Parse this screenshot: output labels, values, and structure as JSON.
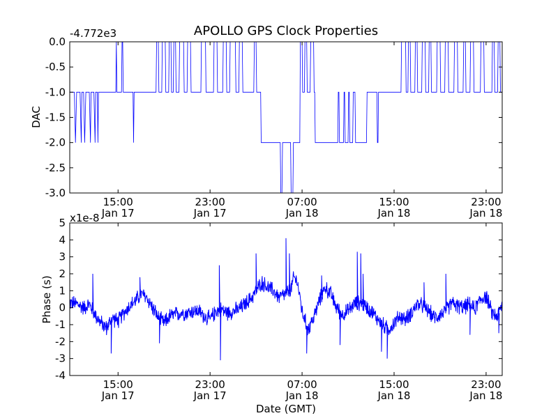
{
  "figure": {
    "title": "APOLLO GPS Clock Properties",
    "xlabel": "Date (GMT)"
  },
  "colors": {
    "line": "#0000ff",
    "axes": "#000000",
    "background": "#ffffff"
  },
  "chart_data": [
    {
      "type": "line",
      "name": "dac",
      "ylabel": "DAC",
      "offset_text": "-4.772e3",
      "ylim": [
        -3.0,
        0.0
      ],
      "xlim_hours": [
        10.8,
        48.4
      ],
      "y_tick_labels": [
        "0.0",
        "-0.5",
        "-1.0",
        "-1.5",
        "-2.0",
        "-2.5",
        "-3.0"
      ],
      "y_tick_values": [
        0.0,
        -0.5,
        -1.0,
        -1.5,
        -2.0,
        -2.5,
        -3.0
      ],
      "x_tick_hours": [
        15,
        23,
        31,
        39,
        47
      ],
      "x_tick_time": [
        "15:00",
        "23:00",
        "07:00",
        "15:00",
        "23:00"
      ],
      "x_tick_date": [
        "Jan 17",
        "Jan 17",
        "Jan 18",
        "Jan 18",
        "Jan 18"
      ],
      "segments": [
        [
          10.8,
          -1
        ],
        [
          11.2,
          -1
        ],
        [
          11.3,
          -2
        ],
        [
          11.4,
          -1
        ],
        [
          11.7,
          -1
        ],
        [
          11.8,
          -2
        ],
        [
          11.85,
          -1
        ],
        [
          12.0,
          -1
        ],
        [
          12.1,
          -2
        ],
        [
          12.2,
          -1
        ],
        [
          12.5,
          -1
        ],
        [
          12.6,
          -2
        ],
        [
          12.65,
          -1
        ],
        [
          12.9,
          -1
        ],
        [
          13.0,
          -2
        ],
        [
          13.05,
          -1
        ],
        [
          13.2,
          -1
        ],
        [
          13.25,
          -2
        ],
        [
          13.3,
          -1
        ],
        [
          14.8,
          -1
        ],
        [
          14.85,
          0
        ],
        [
          14.9,
          -1
        ],
        [
          15.3,
          -1
        ],
        [
          15.35,
          0
        ],
        [
          15.4,
          0
        ],
        [
          15.45,
          -1
        ],
        [
          16.3,
          -1
        ],
        [
          16.35,
          -2
        ],
        [
          16.4,
          -1
        ],
        [
          18.3,
          -1
        ],
        [
          18.35,
          0
        ],
        [
          18.5,
          0
        ],
        [
          18.55,
          -1
        ],
        [
          18.8,
          -1
        ],
        [
          18.85,
          0
        ],
        [
          19.1,
          0
        ],
        [
          19.15,
          -1
        ],
        [
          19.4,
          -1
        ],
        [
          19.45,
          0
        ],
        [
          19.6,
          0
        ],
        [
          19.65,
          -1
        ],
        [
          19.8,
          -1
        ],
        [
          19.85,
          0
        ],
        [
          20.0,
          0
        ],
        [
          20.05,
          -1
        ],
        [
          20.3,
          -1
        ],
        [
          20.35,
          0
        ],
        [
          20.7,
          0
        ],
        [
          20.75,
          -1
        ],
        [
          21.0,
          -1
        ],
        [
          21.05,
          0
        ],
        [
          21.3,
          0
        ],
        [
          21.35,
          -1
        ],
        [
          22.2,
          -1
        ],
        [
          22.25,
          0
        ],
        [
          22.6,
          0
        ],
        [
          22.65,
          -1
        ],
        [
          23.3,
          -1
        ],
        [
          23.35,
          0
        ],
        [
          23.6,
          0
        ],
        [
          23.65,
          -1
        ],
        [
          24.1,
          -1
        ],
        [
          24.15,
          0
        ],
        [
          24.4,
          0
        ],
        [
          24.45,
          -1
        ],
        [
          24.7,
          -1
        ],
        [
          24.75,
          0
        ],
        [
          25.2,
          0
        ],
        [
          25.25,
          -1
        ],
        [
          25.5,
          -1
        ],
        [
          25.55,
          0
        ],
        [
          25.8,
          0
        ],
        [
          25.85,
          -1
        ],
        [
          26.8,
          -1
        ],
        [
          26.85,
          0
        ],
        [
          27.0,
          0
        ],
        [
          27.05,
          -1
        ],
        [
          27.4,
          -1
        ],
        [
          27.45,
          -2
        ],
        [
          29.1,
          -2
        ],
        [
          29.15,
          -3
        ],
        [
          29.25,
          -3
        ],
        [
          29.3,
          -2
        ],
        [
          30.0,
          -2
        ],
        [
          30.05,
          -3
        ],
        [
          30.2,
          -3
        ],
        [
          30.25,
          -2
        ],
        [
          30.8,
          -2
        ],
        [
          30.85,
          0
        ],
        [
          31.0,
          0
        ],
        [
          31.05,
          -1
        ],
        [
          31.2,
          -1
        ],
        [
          31.25,
          0
        ],
        [
          31.4,
          0
        ],
        [
          31.45,
          -1
        ],
        [
          31.7,
          -1
        ],
        [
          31.75,
          0
        ],
        [
          32.0,
          0
        ],
        [
          32.05,
          -1
        ],
        [
          32.1,
          -1
        ],
        [
          32.15,
          -2
        ],
        [
          34.1,
          -2
        ],
        [
          34.15,
          -1
        ],
        [
          34.2,
          -1
        ],
        [
          34.25,
          -2
        ],
        [
          34.6,
          -2
        ],
        [
          34.65,
          -1
        ],
        [
          34.7,
          -1
        ],
        [
          34.75,
          -2
        ],
        [
          35.0,
          -2
        ],
        [
          35.05,
          -1
        ],
        [
          35.1,
          -1
        ],
        [
          35.15,
          -2
        ],
        [
          35.4,
          -2
        ],
        [
          35.45,
          -1
        ],
        [
          35.6,
          -1
        ],
        [
          35.65,
          -2
        ],
        [
          36.6,
          -2
        ],
        [
          36.65,
          -1
        ],
        [
          37.5,
          -1
        ],
        [
          37.55,
          -2
        ],
        [
          37.6,
          -2
        ],
        [
          37.65,
          -1
        ],
        [
          39.6,
          -1
        ],
        [
          39.65,
          0
        ],
        [
          40.0,
          0
        ],
        [
          40.05,
          -1
        ],
        [
          40.2,
          -1
        ],
        [
          40.25,
          0
        ],
        [
          40.4,
          0
        ],
        [
          40.45,
          -1
        ],
        [
          40.8,
          -1
        ],
        [
          40.85,
          0
        ],
        [
          41.0,
          0
        ],
        [
          41.05,
          -1
        ],
        [
          41.4,
          -1
        ],
        [
          41.45,
          0
        ],
        [
          41.7,
          0
        ],
        [
          41.75,
          -1
        ],
        [
          42.0,
          -1
        ],
        [
          42.05,
          0
        ],
        [
          42.2,
          0
        ],
        [
          42.25,
          -1
        ],
        [
          42.7,
          -1
        ],
        [
          42.75,
          0
        ],
        [
          43.0,
          0
        ],
        [
          43.05,
          -1
        ],
        [
          43.4,
          -1
        ],
        [
          43.45,
          0
        ],
        [
          43.7,
          0
        ],
        [
          43.75,
          -1
        ],
        [
          44.2,
          -1
        ],
        [
          44.25,
          0
        ],
        [
          44.5,
          0
        ],
        [
          44.55,
          -1
        ],
        [
          45.0,
          -1
        ],
        [
          45.05,
          0
        ],
        [
          45.2,
          0
        ],
        [
          45.25,
          -1
        ],
        [
          45.6,
          -1
        ],
        [
          45.65,
          0
        ],
        [
          45.9,
          0
        ],
        [
          45.95,
          -1
        ],
        [
          46.5,
          -1
        ],
        [
          46.55,
          0
        ],
        [
          46.8,
          0
        ],
        [
          46.85,
          -1
        ],
        [
          47.5,
          -1
        ],
        [
          47.55,
          0
        ],
        [
          47.7,
          0
        ],
        [
          47.75,
          -1
        ],
        [
          48.0,
          -1
        ],
        [
          48.05,
          0
        ],
        [
          48.2,
          0
        ],
        [
          48.25,
          -1
        ],
        [
          48.4,
          -1
        ]
      ]
    },
    {
      "type": "line",
      "name": "phase",
      "ylabel": "Phase (s)",
      "offset_text": "x1e-8",
      "ylim": [
        -4,
        5
      ],
      "xlim_hours": [
        10.8,
        48.4
      ],
      "y_tick_labels": [
        "5",
        "4",
        "3",
        "2",
        "1",
        "0",
        "-1",
        "-2",
        "-3",
        "-4"
      ],
      "y_tick_values": [
        5,
        4,
        3,
        2,
        1,
        0,
        -1,
        -2,
        -3,
        -4
      ],
      "x_tick_hours": [
        15,
        23,
        31,
        39,
        47
      ],
      "x_tick_time": [
        "15:00",
        "23:00",
        "07:00",
        "15:00",
        "23:00"
      ],
      "x_tick_date": [
        "Jan 17",
        "Jan 17",
        "Jan 18",
        "Jan 18",
        "Jan 18"
      ],
      "envelope": [
        [
          10.8,
          0.3
        ],
        [
          11.5,
          0.2
        ],
        [
          12.0,
          0.0
        ],
        [
          12.5,
          0.2
        ],
        [
          13.0,
          -0.4
        ],
        [
          13.5,
          -0.9
        ],
        [
          14.0,
          -1.2
        ],
        [
          14.5,
          -0.6
        ],
        [
          15.0,
          -0.8
        ],
        [
          15.5,
          -0.3
        ],
        [
          16.0,
          0.1
        ],
        [
          16.5,
          0.4
        ],
        [
          17.0,
          0.8
        ],
        [
          17.5,
          0.6
        ],
        [
          18.0,
          0.0
        ],
        [
          18.5,
          -0.6
        ],
        [
          19.0,
          -0.9
        ],
        [
          19.5,
          -0.5
        ],
        [
          20.0,
          -0.4
        ],
        [
          20.5,
          -0.3
        ],
        [
          21.0,
          -0.3
        ],
        [
          21.5,
          -0.2
        ],
        [
          22.0,
          -0.2
        ],
        [
          22.5,
          -0.5
        ],
        [
          23.0,
          -0.7
        ],
        [
          23.5,
          -0.2
        ],
        [
          24.0,
          -0.1
        ],
        [
          24.5,
          -0.3
        ],
        [
          25.0,
          -0.2
        ],
        [
          25.5,
          -0.1
        ],
        [
          26.0,
          0.2
        ],
        [
          26.5,
          0.5
        ],
        [
          27.0,
          1.0
        ],
        [
          27.5,
          1.5
        ],
        [
          28.0,
          1.2
        ],
        [
          28.5,
          1.0
        ],
        [
          29.0,
          0.6
        ],
        [
          29.5,
          0.8
        ],
        [
          30.0,
          1.0
        ],
        [
          30.3,
          1.8
        ],
        [
          30.6,
          1.5
        ],
        [
          31.0,
          -0.2
        ],
        [
          31.5,
          -1.3
        ],
        [
          32.0,
          -0.6
        ],
        [
          32.5,
          0.4
        ],
        [
          33.0,
          1.2
        ],
        [
          33.5,
          0.8
        ],
        [
          34.0,
          0.0
        ],
        [
          34.5,
          -0.4
        ],
        [
          35.0,
          -0.2
        ],
        [
          35.5,
          0.2
        ],
        [
          36.0,
          0.3
        ],
        [
          36.5,
          0.1
        ],
        [
          37.0,
          -0.2
        ],
        [
          37.5,
          -0.6
        ],
        [
          38.0,
          -1.0
        ],
        [
          38.5,
          -1.3
        ],
        [
          39.0,
          -0.9
        ],
        [
          39.5,
          -0.5
        ],
        [
          40.0,
          -0.7
        ],
        [
          40.5,
          -0.3
        ],
        [
          41.0,
          0.2
        ],
        [
          41.5,
          0.1
        ],
        [
          42.0,
          -0.2
        ],
        [
          42.5,
          -0.6
        ],
        [
          43.0,
          -0.4
        ],
        [
          43.5,
          -0.2
        ],
        [
          44.0,
          0.3
        ],
        [
          44.5,
          0.1
        ],
        [
          45.0,
          0.0
        ],
        [
          45.5,
          0.2
        ],
        [
          46.0,
          -0.1
        ],
        [
          46.5,
          0.5
        ],
        [
          47.0,
          0.7
        ],
        [
          47.5,
          -0.3
        ],
        [
          48.0,
          -0.5
        ],
        [
          48.4,
          0.2
        ]
      ],
      "spikes": [
        [
          12.8,
          2.0
        ],
        [
          14.4,
          -2.7
        ],
        [
          16.9,
          1.8
        ],
        [
          18.6,
          -2.1
        ],
        [
          23.9,
          -3.1
        ],
        [
          23.8,
          2.5
        ],
        [
          27.0,
          3.2
        ],
        [
          29.6,
          4.1
        ],
        [
          29.9,
          3.2
        ],
        [
          31.4,
          -2.7
        ],
        [
          32.7,
          1.9
        ],
        [
          34.3,
          -2.2
        ],
        [
          35.8,
          3.3
        ],
        [
          36.1,
          3.2
        ],
        [
          36.3,
          2.0
        ],
        [
          37.9,
          -2.6
        ],
        [
          38.4,
          -3.0
        ],
        [
          41.6,
          1.5
        ],
        [
          43.5,
          2.0
        ],
        [
          45.6,
          -1.6
        ],
        [
          48.1,
          -1.5
        ]
      ],
      "noise_amplitude": 0.35
    }
  ]
}
